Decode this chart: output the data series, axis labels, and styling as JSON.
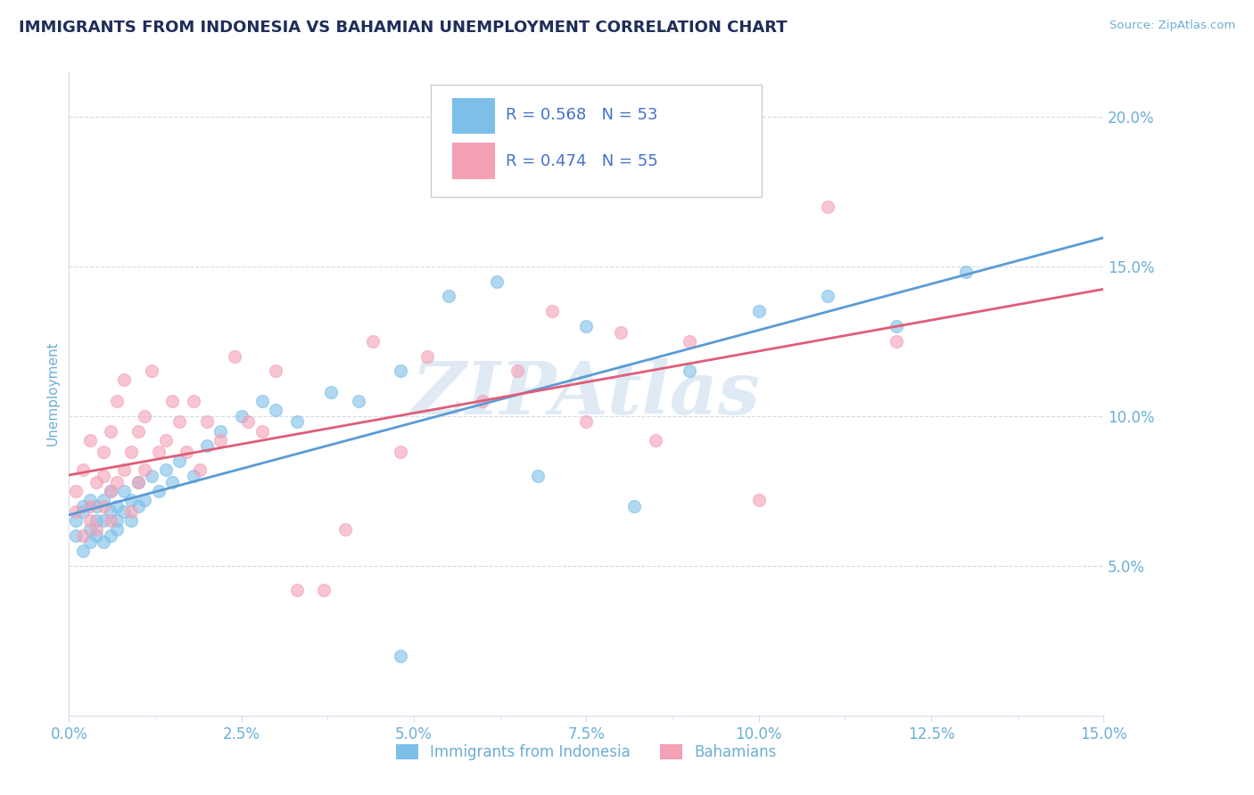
{
  "title": "IMMIGRANTS FROM INDONESIA VS BAHAMIAN UNEMPLOYMENT CORRELATION CHART",
  "source_text": "Source: ZipAtlas.com",
  "ylabel": "Unemployment",
  "xlim": [
    0.0,
    0.15
  ],
  "ylim": [
    0.0,
    0.215
  ],
  "xtick_labels": [
    "0.0%",
    "",
    "2.5%",
    "",
    "5.0%",
    "",
    "7.5%",
    "",
    "10.0%",
    "",
    "12.5%",
    "",
    "15.0%"
  ],
  "xtick_values": [
    0.0,
    0.0125,
    0.025,
    0.0375,
    0.05,
    0.0625,
    0.075,
    0.0875,
    0.1,
    0.1125,
    0.125,
    0.1375,
    0.15
  ],
  "xtick_major_labels": [
    "0.0%",
    "2.5%",
    "5.0%",
    "7.5%",
    "10.0%",
    "12.5%",
    "15.0%"
  ],
  "xtick_major_values": [
    0.0,
    0.025,
    0.05,
    0.075,
    0.1,
    0.125,
    0.15
  ],
  "ytick_labels": [
    "5.0%",
    "10.0%",
    "15.0%",
    "20.0%"
  ],
  "ytick_values": [
    0.05,
    0.1,
    0.15,
    0.2
  ],
  "series1_color": "#7dbfe8",
  "series2_color": "#f4a0b5",
  "line1_color": "#5b9bd5",
  "line2_color": "#e05c78",
  "legend_r1": "R = 0.568",
  "legend_n1": "N = 53",
  "legend_r2": "R = 0.474",
  "legend_n2": "N = 55",
  "legend_label1": "Immigrants from Indonesia",
  "legend_label2": "Bahamians",
  "title_color": "#1f2d5a",
  "axis_color": "#6baed6",
  "text_color": "#4472c4",
  "grid_color": "#d0dce8",
  "watermark": "ZIPAtlas",
  "watermark_color": "#c5d9ee",
  "background_color": "#ffffff",
  "series1_x": [
    0.001,
    0.001,
    0.002,
    0.002,
    0.002,
    0.003,
    0.003,
    0.003,
    0.004,
    0.004,
    0.004,
    0.005,
    0.005,
    0.005,
    0.006,
    0.006,
    0.006,
    0.007,
    0.007,
    0.007,
    0.008,
    0.008,
    0.009,
    0.009,
    0.01,
    0.01,
    0.011,
    0.012,
    0.013,
    0.014,
    0.015,
    0.016,
    0.018,
    0.02,
    0.022,
    0.025,
    0.028,
    0.03,
    0.033,
    0.038,
    0.042,
    0.048,
    0.055,
    0.062,
    0.068,
    0.075,
    0.082,
    0.09,
    0.1,
    0.11,
    0.12,
    0.13,
    0.048
  ],
  "series1_y": [
    0.065,
    0.06,
    0.07,
    0.055,
    0.068,
    0.062,
    0.058,
    0.072,
    0.06,
    0.065,
    0.07,
    0.058,
    0.065,
    0.072,
    0.06,
    0.068,
    0.075,
    0.062,
    0.07,
    0.065,
    0.068,
    0.075,
    0.065,
    0.072,
    0.07,
    0.078,
    0.072,
    0.08,
    0.075,
    0.082,
    0.078,
    0.085,
    0.08,
    0.09,
    0.095,
    0.1,
    0.105,
    0.102,
    0.098,
    0.108,
    0.105,
    0.115,
    0.14,
    0.145,
    0.08,
    0.13,
    0.07,
    0.115,
    0.135,
    0.14,
    0.13,
    0.148,
    0.02
  ],
  "series2_x": [
    0.001,
    0.001,
    0.002,
    0.002,
    0.003,
    0.003,
    0.003,
    0.004,
    0.004,
    0.005,
    0.005,
    0.005,
    0.006,
    0.006,
    0.006,
    0.007,
    0.007,
    0.008,
    0.008,
    0.009,
    0.009,
    0.01,
    0.01,
    0.011,
    0.011,
    0.012,
    0.013,
    0.014,
    0.015,
    0.016,
    0.017,
    0.018,
    0.019,
    0.02,
    0.022,
    0.024,
    0.026,
    0.028,
    0.03,
    0.033,
    0.037,
    0.04,
    0.044,
    0.048,
    0.052,
    0.06,
    0.065,
    0.07,
    0.075,
    0.08,
    0.085,
    0.09,
    0.1,
    0.11,
    0.12
  ],
  "series2_y": [
    0.068,
    0.075,
    0.06,
    0.082,
    0.07,
    0.092,
    0.065,
    0.078,
    0.062,
    0.08,
    0.07,
    0.088,
    0.075,
    0.095,
    0.065,
    0.078,
    0.105,
    0.082,
    0.112,
    0.068,
    0.088,
    0.078,
    0.095,
    0.1,
    0.082,
    0.115,
    0.088,
    0.092,
    0.105,
    0.098,
    0.088,
    0.105,
    0.082,
    0.098,
    0.092,
    0.12,
    0.098,
    0.095,
    0.115,
    0.042,
    0.042,
    0.062,
    0.125,
    0.088,
    0.12,
    0.105,
    0.115,
    0.135,
    0.098,
    0.128,
    0.092,
    0.125,
    0.072,
    0.17,
    0.125
  ]
}
